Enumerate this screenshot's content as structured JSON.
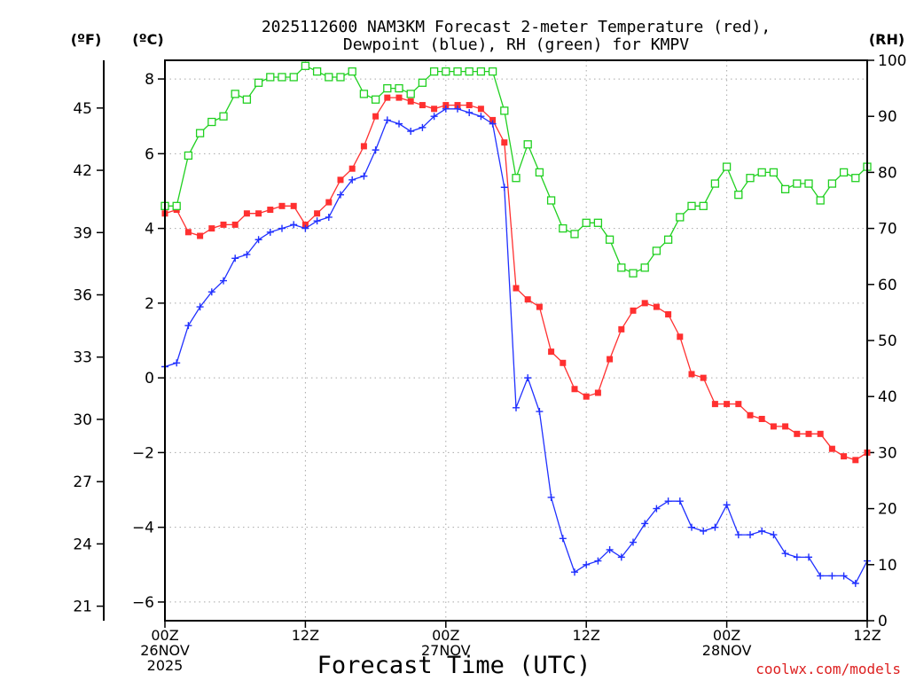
{
  "chart_data": {
    "type": "line",
    "title": "2025112600 NAM3KM Forecast 2-meter Temperature (red),",
    "subtitle": "Dewpoint (blue), RH (green) for KMPV",
    "xlabel": "Forecast Time (UTC)",
    "credit": "coolwx.com/models",
    "axis_units": {
      "fahrenheit": "(ºF)",
      "celsius": "(ºC)",
      "rh": "(RH)"
    },
    "x_range_hours": [
      0,
      60
    ],
    "x_ticks": [
      {
        "hour": 0,
        "lines": [
          "00Z",
          "26NOV",
          "2025"
        ]
      },
      {
        "hour": 12,
        "lines": [
          "12Z"
        ]
      },
      {
        "hour": 24,
        "lines": [
          "00Z",
          "27NOV"
        ]
      },
      {
        "hour": 36,
        "lines": [
          "12Z"
        ]
      },
      {
        "hour": 48,
        "lines": [
          "00Z",
          "28NOV"
        ]
      },
      {
        "hour": 60,
        "lines": [
          "12Z"
        ]
      }
    ],
    "ylim_celsius": [
      -6.5,
      8.5
    ],
    "celsius_ticks": [
      "8",
      "6",
      "4",
      "2",
      "0",
      "−2",
      "−4",
      "−6"
    ],
    "fahrenheit_ticks": [
      "45",
      "42",
      "39",
      "36",
      "33",
      "30",
      "27",
      "24",
      "21"
    ],
    "ylim_rh": [
      0,
      100
    ],
    "rh_ticks": [
      "100",
      "90",
      "80",
      "70",
      "60",
      "50",
      "40",
      "30",
      "20",
      "10",
      "0"
    ],
    "grid": true,
    "series": [
      {
        "name": "2-meter Temperature",
        "unit": "C",
        "color": "#ff3030",
        "marker": "filled-square",
        "x": [
          0,
          1,
          2,
          3,
          4,
          5,
          6,
          7,
          8,
          9,
          10,
          11,
          12,
          13,
          14,
          15,
          16,
          17,
          18,
          19,
          20,
          21,
          22,
          23,
          24,
          25,
          26,
          27,
          28,
          29,
          30,
          31,
          32,
          33,
          34,
          35,
          36,
          37,
          38,
          39,
          40,
          41,
          42,
          43,
          44,
          45,
          46,
          47,
          48,
          49,
          50,
          51,
          52,
          53,
          54,
          55,
          56,
          57,
          58,
          59,
          60
        ],
        "values": [
          4.4,
          4.5,
          3.9,
          3.8,
          4.0,
          4.1,
          4.1,
          4.4,
          4.4,
          4.5,
          4.6,
          4.6,
          4.1,
          4.4,
          4.7,
          5.3,
          5.6,
          6.2,
          7.0,
          7.5,
          7.5,
          7.4,
          7.3,
          7.2,
          7.3,
          7.3,
          7.3,
          7.2,
          6.9,
          6.3,
          2.4,
          2.1,
          1.9,
          0.7,
          0.4,
          -0.3,
          -0.5,
          -0.4,
          0.5,
          1.3,
          1.8,
          2.0,
          1.9,
          1.7,
          1.1,
          0.1,
          0.0,
          -0.7,
          -0.7,
          -0.7,
          -1.0,
          -1.1,
          -1.3,
          -1.3,
          -1.5,
          -1.5,
          -1.5,
          -1.9,
          -2.1,
          -2.2,
          -2.0
        ]
      },
      {
        "name": "Dewpoint",
        "unit": "C",
        "color": "#2030ff",
        "marker": "plus",
        "x": [
          0,
          1,
          2,
          3,
          4,
          5,
          6,
          7,
          8,
          9,
          10,
          11,
          12,
          13,
          14,
          15,
          16,
          17,
          18,
          19,
          20,
          21,
          22,
          23,
          24,
          25,
          26,
          27,
          28,
          29,
          30,
          31,
          32,
          33,
          34,
          35,
          36,
          37,
          38,
          39,
          40,
          41,
          42,
          43,
          44,
          45,
          46,
          47,
          48,
          49,
          50,
          51,
          52,
          53,
          54,
          55,
          56,
          57,
          58,
          59,
          60
        ],
        "values": [
          0.3,
          0.4,
          1.4,
          1.9,
          2.3,
          2.6,
          3.2,
          3.3,
          3.7,
          3.9,
          4.0,
          4.1,
          4.0,
          4.2,
          4.3,
          4.9,
          5.3,
          5.4,
          6.1,
          6.9,
          6.8,
          6.6,
          6.7,
          7.0,
          7.2,
          7.2,
          7.1,
          7.0,
          6.8,
          5.1,
          -0.8,
          0.0,
          -0.9,
          -3.2,
          -4.3,
          -5.2,
          -5.0,
          -4.9,
          -4.6,
          -4.8,
          -4.4,
          -3.9,
          -3.5,
          -3.3,
          -3.3,
          -4.0,
          -4.1,
          -4.0,
          -3.4,
          -4.2,
          -4.2,
          -4.1,
          -4.2,
          -4.7,
          -4.8,
          -4.8,
          -5.3,
          -5.3,
          -5.3,
          -5.5,
          -4.9
        ]
      },
      {
        "name": "RH",
        "unit": "%",
        "color": "#20d020",
        "marker": "open-square",
        "x": [
          0,
          1,
          2,
          3,
          4,
          5,
          6,
          7,
          8,
          9,
          10,
          11,
          12,
          13,
          14,
          15,
          16,
          17,
          18,
          19,
          20,
          21,
          22,
          23,
          24,
          25,
          26,
          27,
          28,
          29,
          30,
          31,
          32,
          33,
          34,
          35,
          36,
          37,
          38,
          39,
          40,
          41,
          42,
          43,
          44,
          45,
          46,
          47,
          48,
          49,
          50,
          51,
          52,
          53,
          54,
          55,
          56,
          57,
          58,
          59,
          60
        ],
        "values": [
          74,
          74,
          83,
          87,
          89,
          90,
          94,
          93,
          96,
          97,
          97,
          97,
          99,
          98,
          97,
          97,
          98,
          94,
          93,
          95,
          95,
          94,
          96,
          98,
          98,
          98,
          98,
          98,
          98,
          91,
          79,
          85,
          80,
          75,
          70,
          69,
          71,
          71,
          68,
          63,
          62,
          63,
          66,
          68,
          72,
          74,
          74,
          78,
          81,
          76,
          79,
          80,
          80,
          77,
          78,
          78,
          75,
          78,
          80,
          79,
          81
        ]
      }
    ]
  }
}
